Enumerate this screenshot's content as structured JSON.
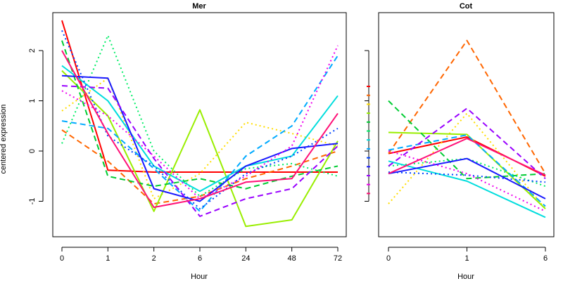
{
  "ylabel": "centered expression",
  "chart_data": [
    {
      "type": "line",
      "title": "Mer",
      "xlabel": "Hour",
      "ylabel": "centered expression",
      "categories": [
        "0",
        "1",
        "2",
        "6",
        "24",
        "48",
        "72"
      ],
      "ylim": [
        -1.7,
        2.65
      ],
      "yticks": [
        -1,
        0,
        1,
        2
      ],
      "grid": false,
      "series": [
        {
          "color": "#ff0000",
          "dash": "solid",
          "values": [
            2.6,
            -0.38,
            -0.42,
            -0.42,
            -0.42,
            -0.42,
            -0.42
          ]
        },
        {
          "color": "#ff6600",
          "dash": "dashed",
          "values": [
            0.42,
            -0.2,
            -1.05,
            -0.9,
            -0.55,
            -0.3,
            0.0
          ]
        },
        {
          "color": "#ffdd00",
          "dash": "dotted",
          "values": [
            0.8,
            1.45,
            -0.95,
            -0.45,
            0.57,
            0.35,
            0.1
          ]
        },
        {
          "color": "#99ee00",
          "dash": "solid",
          "values": [
            1.6,
            0.7,
            -1.2,
            0.82,
            -1.5,
            -1.37,
            0.2
          ]
        },
        {
          "color": "#00cc33",
          "dash": "dashed",
          "values": [
            2.2,
            -0.5,
            -0.7,
            -0.55,
            -0.75,
            -0.5,
            -0.3
          ]
        },
        {
          "color": "#00ee66",
          "dash": "dotted",
          "values": [
            0.15,
            2.3,
            0.0,
            -0.9,
            -0.35,
            -0.25,
            -0.5
          ]
        },
        {
          "color": "#00dddd",
          "dash": "solid",
          "values": [
            1.7,
            1.0,
            -0.3,
            -0.8,
            -0.3,
            -0.1,
            1.1
          ]
        },
        {
          "color": "#00aaff",
          "dash": "dashed",
          "values": [
            0.6,
            0.45,
            -0.35,
            -1.2,
            -0.1,
            0.5,
            1.9
          ]
        },
        {
          "color": "#0044ff",
          "dash": "dotted",
          "values": [
            2.4,
            0.3,
            -0.3,
            -1.15,
            -0.45,
            -0.1,
            0.45
          ]
        },
        {
          "color": "#1a1aff",
          "dash": "solid",
          "values": [
            1.5,
            1.45,
            -0.75,
            -1.0,
            -0.3,
            0.05,
            0.15
          ]
        },
        {
          "color": "#9900ff",
          "dash": "dashed",
          "values": [
            1.3,
            1.25,
            -0.15,
            -1.3,
            -0.95,
            -0.75,
            0.1
          ]
        },
        {
          "color": "#ee00ee",
          "dash": "dotted",
          "values": [
            1.2,
            0.7,
            -0.1,
            -0.95,
            -0.5,
            0.1,
            2.1
          ]
        },
        {
          "color": "#ff1177",
          "dash": "solid",
          "values": [
            2.0,
            0.35,
            -1.12,
            -0.95,
            -0.62,
            -0.55,
            0.75
          ]
        }
      ]
    },
    {
      "type": "line",
      "title": "Cot",
      "xlabel": "Hour",
      "categories": [
        "0",
        "1",
        "6"
      ],
      "ylim": [
        -1.7,
        2.65
      ],
      "grid": false,
      "series": [
        {
          "color": "#ff0000",
          "dash": "solid",
          "values": [
            -0.05,
            0.28,
            -0.5
          ]
        },
        {
          "color": "#ff6600",
          "dash": "dashed",
          "values": [
            -0.05,
            2.2,
            -0.45
          ]
        },
        {
          "color": "#ffdd00",
          "dash": "dotted",
          "values": [
            -1.05,
            0.75,
            -1.15
          ]
        },
        {
          "color": "#99ee00",
          "dash": "solid",
          "values": [
            0.37,
            0.33,
            -1.15
          ]
        },
        {
          "color": "#00cc33",
          "dash": "dashed",
          "values": [
            1.0,
            -0.55,
            -0.45
          ]
        },
        {
          "color": "#00ee66",
          "dash": "dotted",
          "values": [
            -0.3,
            -0.15,
            -0.7
          ]
        },
        {
          "color": "#00dddd",
          "dash": "solid",
          "values": [
            -0.2,
            -0.6,
            -1.32
          ]
        },
        {
          "color": "#00aaff",
          "dash": "dashed",
          "values": [
            0.02,
            0.32,
            -1.1
          ]
        },
        {
          "color": "#0044ff",
          "dash": "dotted",
          "values": [
            -0.42,
            -0.48,
            -0.62
          ]
        },
        {
          "color": "#1a1aff",
          "dash": "solid",
          "values": [
            -0.45,
            -0.15,
            -0.95
          ]
        },
        {
          "color": "#9900ff",
          "dash": "dashed",
          "values": [
            -0.3,
            0.85,
            -0.55
          ]
        },
        {
          "color": "#ee00ee",
          "dash": "dotted",
          "values": [
            0.0,
            -0.45,
            -1.2
          ]
        },
        {
          "color": "#ff1177",
          "dash": "solid",
          "values": [
            -0.45,
            0.25,
            -0.48
          ]
        }
      ]
    }
  ]
}
